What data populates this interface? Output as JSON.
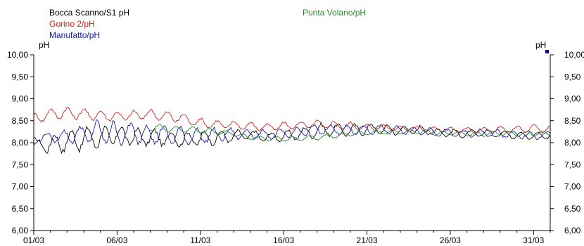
{
  "chart_data": {
    "type": "line",
    "title": "",
    "x_tick_labels": [
      "01/03",
      "06/03",
      "11/03",
      "16/03",
      "21/03",
      "26/03",
      "31/03"
    ],
    "xlim_days": [
      1,
      32
    ],
    "ylabel_left": "pH",
    "ylabel_right": "pH",
    "ylim": [
      6.0,
      10.0
    ],
    "y_ticks": [
      "6,00",
      "6,50",
      "7,00",
      "7,50",
      "8,00",
      "8,50",
      "9,00",
      "9,50",
      "10,00"
    ],
    "grid": false,
    "legend_placement": "top-left",
    "series": [
      {
        "name": "Bocca Scanno/S1 pH",
        "color": "#000000",
        "x": [
          1.0,
          2,
          3,
          4,
          5,
          6,
          7,
          8,
          9,
          10,
          11,
          12,
          13,
          14,
          15,
          16,
          17,
          18,
          19,
          20,
          21,
          22,
          23,
          24,
          25,
          26,
          27,
          28,
          29,
          30,
          31,
          32
        ],
        "y": [
          7.92,
          7.97,
          8.03,
          8.1,
          8.12,
          8.18,
          8.13,
          8.12,
          8.1,
          8.08,
          8.1,
          8.12,
          8.15,
          8.18,
          8.12,
          8.15,
          8.2,
          8.28,
          8.3,
          8.28,
          8.32,
          8.3,
          8.28,
          8.3,
          8.25,
          8.22,
          8.2,
          8.22,
          8.2,
          8.18,
          8.15,
          8.18
        ],
        "amplitude": [
          0.08,
          0.2,
          0.22,
          0.24,
          0.22,
          0.2,
          0.18,
          0.18,
          0.16,
          0.16,
          0.16,
          0.14,
          0.12,
          0.1,
          0.1,
          0.1,
          0.12,
          0.14,
          0.12,
          0.12,
          0.12,
          0.1,
          0.1,
          0.1,
          0.08,
          0.08,
          0.08,
          0.08,
          0.08,
          0.08,
          0.08,
          0.08
        ]
      },
      {
        "name": "Gorino 2/pH",
        "color": "#cc2222",
        "x": [
          1.0,
          2,
          3,
          4,
          5,
          6,
          7,
          8,
          9,
          10,
          11,
          12,
          13,
          14,
          15,
          16,
          17,
          18,
          19,
          20,
          21,
          22,
          23,
          24,
          25,
          26,
          27,
          28,
          29,
          30,
          31,
          32
        ],
        "y": [
          8.55,
          8.65,
          8.68,
          8.65,
          8.62,
          8.6,
          8.62,
          8.65,
          8.6,
          8.55,
          8.45,
          8.42,
          8.4,
          8.38,
          8.35,
          8.38,
          8.4,
          8.42,
          8.4,
          8.38,
          8.35,
          8.35,
          8.32,
          8.32,
          8.3,
          8.3,
          8.28,
          8.28,
          8.3,
          8.3,
          8.32,
          8.3
        ],
        "amplitude": [
          0.1,
          0.12,
          0.12,
          0.12,
          0.1,
          0.1,
          0.1,
          0.1,
          0.1,
          0.1,
          0.1,
          0.08,
          0.08,
          0.08,
          0.08,
          0.08,
          0.08,
          0.08,
          0.08,
          0.08,
          0.06,
          0.06,
          0.06,
          0.06,
          0.06,
          0.06,
          0.06,
          0.06,
          0.06,
          0.08,
          0.08,
          0.08
        ]
      },
      {
        "name": "Manufatto/pH",
        "color": "#1a1aaa",
        "x": [
          1.0,
          2,
          3,
          4,
          5,
          6,
          7,
          8,
          9,
          10,
          11,
          12,
          13,
          14,
          15,
          16,
          17,
          18,
          19,
          20,
          21,
          22,
          23,
          24,
          25,
          26,
          27,
          28,
          29,
          30,
          31,
          32
        ],
        "y": [
          8.12,
          8.12,
          8.15,
          8.2,
          8.25,
          8.2,
          8.22,
          8.2,
          8.18,
          8.15,
          8.15,
          8.18,
          8.2,
          8.2,
          8.18,
          8.2,
          8.25,
          8.3,
          8.3,
          8.28,
          8.3,
          8.3,
          8.28,
          8.28,
          8.25,
          8.22,
          8.2,
          8.22,
          8.2,
          8.18,
          8.15,
          8.18
        ],
        "amplitude": [
          0.08,
          0.1,
          0.14,
          0.2,
          0.24,
          0.24,
          0.22,
          0.22,
          0.2,
          0.18,
          0.16,
          0.14,
          0.12,
          0.1,
          0.1,
          0.1,
          0.1,
          0.1,
          0.1,
          0.1,
          0.1,
          0.1,
          0.08,
          0.08,
          0.08,
          0.08,
          0.08,
          0.08,
          0.08,
          0.08,
          0.08,
          0.08
        ]
      },
      {
        "name": "Punta Volano/pH",
        "color": "#2a8a2a",
        "x": [
          8.0,
          9,
          10,
          11,
          12,
          13,
          14,
          15,
          16,
          17,
          18,
          19,
          20,
          21,
          22,
          23,
          24,
          25,
          26,
          27,
          28,
          29,
          30,
          31,
          32
        ],
        "y": [
          8.35,
          8.32,
          8.3,
          8.28,
          8.25,
          8.2,
          8.12,
          8.1,
          8.08,
          8.1,
          8.12,
          8.15,
          8.2,
          8.22,
          8.25,
          8.25,
          8.25,
          8.22,
          8.22,
          8.2,
          8.2,
          8.22,
          8.2,
          8.2,
          8.22
        ],
        "amplitude": [
          0.08,
          0.08,
          0.06,
          0.06,
          0.06,
          0.05,
          0.05,
          0.05,
          0.05,
          0.05,
          0.05,
          0.05,
          0.05,
          0.05,
          0.05,
          0.05,
          0.05,
          0.05,
          0.05,
          0.05,
          0.05,
          0.05,
          0.05,
          0.05,
          0.05
        ]
      }
    ]
  }
}
